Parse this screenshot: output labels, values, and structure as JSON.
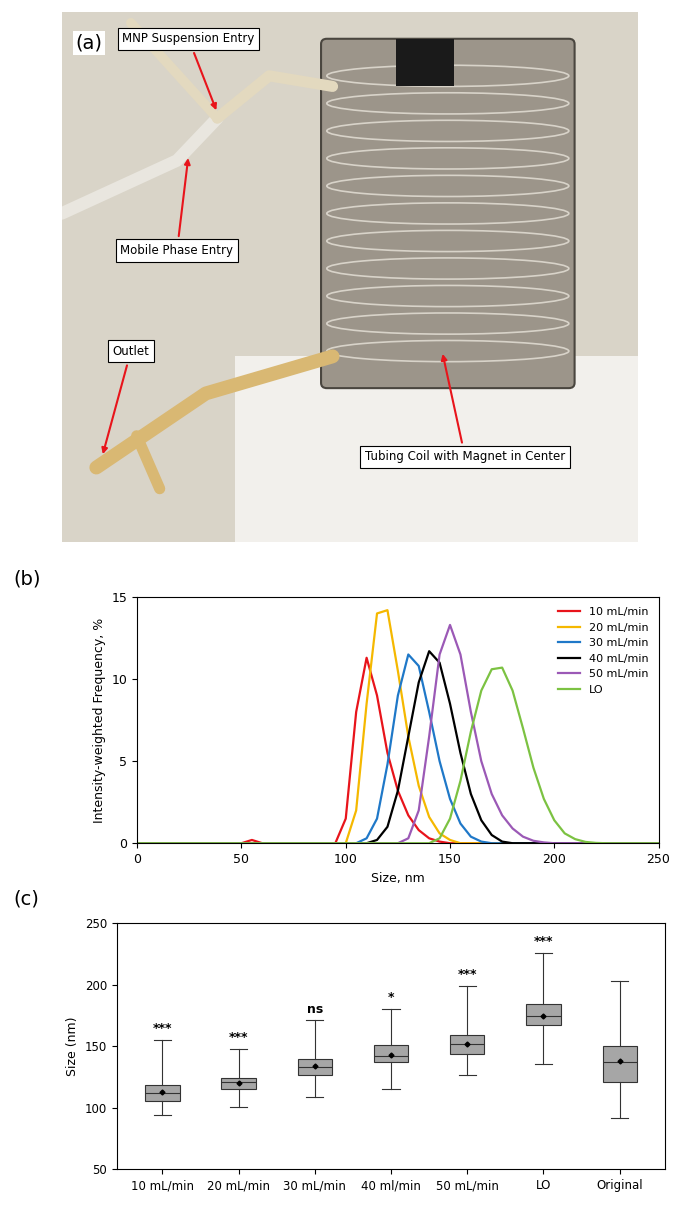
{
  "photo": {
    "panel_label": "(a)",
    "labels": [
      "MNP Suspension Entry",
      "Mobile Phase Entry",
      "Outlet",
      "Tubing Coil with Magnet in Center"
    ]
  },
  "chart_data": [
    {
      "type": "line",
      "panel_label": "(b)",
      "x_label": "Size, nm",
      "y_label": "Intensity-weighted Frequency, %",
      "x": [
        0,
        50,
        55,
        60,
        90,
        95,
        100,
        105,
        110,
        115,
        120,
        125,
        130,
        135,
        140,
        145,
        150,
        155,
        160,
        165,
        170,
        175,
        180,
        185,
        190,
        195,
        200,
        205,
        210,
        215,
        220,
        225,
        230,
        250
      ],
      "series": [
        {
          "name": "10 mL/min",
          "color": "#e8141b",
          "values": [
            0,
            0,
            0.2,
            0,
            0,
            0,
            1.5,
            8.0,
            11.3,
            9.0,
            5.5,
            3.2,
            1.7,
            0.8,
            0.3,
            0.1,
            0,
            0,
            0,
            0,
            0,
            0,
            0,
            0,
            0,
            0,
            0,
            0,
            0,
            0,
            0,
            0,
            0,
            0
          ]
        },
        {
          "name": "20 mL/min",
          "color": "#f5b800",
          "values": [
            0,
            0,
            0,
            0,
            0,
            0,
            0,
            2.0,
            8.5,
            14.0,
            14.2,
            10.5,
            6.5,
            3.5,
            1.6,
            0.6,
            0.2,
            0,
            0,
            0,
            0,
            0,
            0,
            0,
            0,
            0,
            0,
            0,
            0,
            0,
            0,
            0,
            0,
            0
          ]
        },
        {
          "name": "30 mL/min",
          "color": "#1f78c8",
          "values": [
            0,
            0,
            0,
            0,
            0,
            0,
            0,
            0,
            0.3,
            1.5,
            4.8,
            9.0,
            11.5,
            10.8,
            8.0,
            5.0,
            2.7,
            1.2,
            0.4,
            0.1,
            0,
            0,
            0,
            0,
            0,
            0,
            0,
            0,
            0,
            0,
            0,
            0,
            0,
            0
          ]
        },
        {
          "name": "40 mL/min",
          "color": "#000000",
          "values": [
            0,
            0,
            0,
            0,
            0,
            0,
            0,
            0,
            0,
            0.2,
            1.0,
            3.2,
            6.5,
            9.8,
            11.7,
            11.0,
            8.5,
            5.5,
            3.0,
            1.4,
            0.5,
            0.1,
            0,
            0,
            0,
            0,
            0,
            0,
            0,
            0,
            0,
            0,
            0,
            0
          ]
        },
        {
          "name": "50 mL/min",
          "color": "#9b59b6",
          "values": [
            0,
            0,
            0,
            0,
            0,
            0,
            0,
            0,
            0,
            0,
            0,
            0,
            0.3,
            2.0,
            6.5,
            11.5,
            13.3,
            11.5,
            8.0,
            5.0,
            3.0,
            1.7,
            0.9,
            0.4,
            0.15,
            0.05,
            0,
            0,
            0,
            0,
            0,
            0,
            0,
            0
          ]
        },
        {
          "name": "LO",
          "color": "#7cc242",
          "values": [
            0,
            0,
            0,
            0,
            0,
            0,
            0,
            0,
            0,
            0,
            0,
            0,
            0,
            0,
            0,
            0.3,
            1.5,
            3.8,
            6.8,
            9.3,
            10.6,
            10.7,
            9.3,
            7.0,
            4.6,
            2.7,
            1.4,
            0.6,
            0.25,
            0.08,
            0.02,
            0,
            0,
            0
          ]
        }
      ],
      "xlim": [
        0,
        250
      ],
      "xticks": [
        0,
        50,
        100,
        150,
        200,
        250
      ],
      "ylim": [
        0,
        15
      ],
      "yticks": [
        0,
        5,
        10,
        15
      ],
      "legend": "upper right",
      "grid": false
    },
    {
      "type": "box",
      "panel_label": "(c)",
      "y_label": "Size (nm)",
      "categories": [
        "10 mL/min",
        "20 mL/min",
        "30 mL/min",
        "40 ml/min",
        "50 mL/min",
        "LO",
        "Original"
      ],
      "whisker_low": [
        94,
        101,
        109,
        115,
        127,
        136,
        92
      ],
      "q1": [
        106,
        115,
        127,
        137,
        144,
        167,
        121
      ],
      "median": [
        112,
        121,
        133,
        142,
        152,
        175,
        137
      ],
      "mean": [
        113,
        120,
        134,
        143,
        152,
        175,
        138
      ],
      "q3": [
        119,
        124,
        140,
        151,
        159,
        184,
        150
      ],
      "whisker_high": [
        155,
        148,
        171,
        180,
        199,
        226,
        203
      ],
      "significance": [
        "***",
        "***",
        "ns",
        "*",
        "***",
        "***",
        null
      ],
      "color": "#a6a6a6",
      "ylim": [
        50,
        250
      ],
      "yticks": [
        50,
        100,
        150,
        200,
        250
      ],
      "grid": false
    }
  ]
}
